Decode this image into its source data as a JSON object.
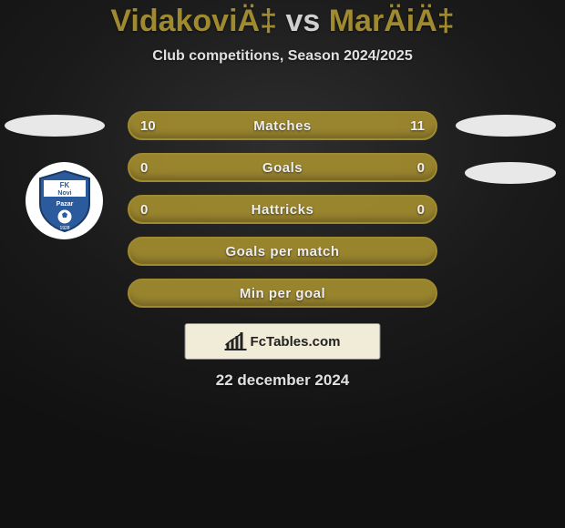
{
  "colors": {
    "accent": "#a08a2f",
    "bg_gradient_center": "#2e2e2e",
    "bg_gradient_edge": "#111111",
    "text_light": "#e8e8e8",
    "footer_card_bg": "#f1ecd8"
  },
  "title": {
    "p1": "VidakoviÄ‡",
    "vs": "vs",
    "p2": "MarÄiÄ‡"
  },
  "subtitle": "Club competitions, Season 2024/2025",
  "club_badge": {
    "line1": "FK",
    "line2": "Novi",
    "line3": "Pazar",
    "year": "1928",
    "shield_color": "#2b5b9c",
    "text_color": "#ffffff"
  },
  "bars": [
    {
      "label": "Matches",
      "left": "10",
      "right": "11"
    },
    {
      "label": "Goals",
      "left": "0",
      "right": "0"
    },
    {
      "label": "Hattricks",
      "left": "0",
      "right": "0"
    },
    {
      "label": "Goals per match",
      "left": "",
      "right": ""
    },
    {
      "label": "Min per goal",
      "left": "",
      "right": ""
    }
  ],
  "footer_brand": "FcTables.com",
  "date": "22 december 2024"
}
